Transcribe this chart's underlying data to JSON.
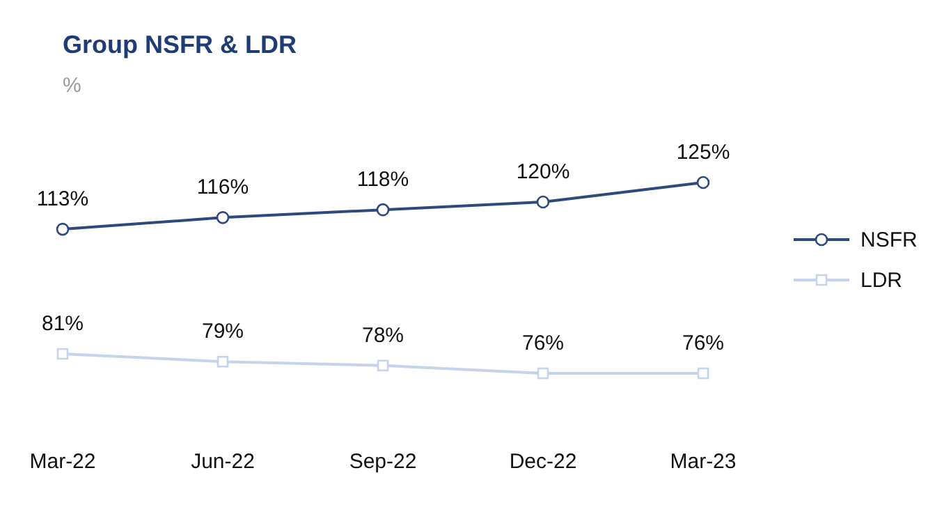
{
  "chart_data": {
    "type": "line",
    "title": "Group NSFR & LDR",
    "subtitle": "%",
    "categories": [
      "Mar-22",
      "Jun-22",
      "Sep-22",
      "Dec-22",
      "Mar-23"
    ],
    "series": [
      {
        "name": "NSFR",
        "color": "#2e4a7d",
        "marker": "circle",
        "values": [
          113,
          116,
          118,
          120,
          125
        ],
        "value_labels": [
          "113%",
          "116%",
          "118%",
          "120%",
          "125%"
        ]
      },
      {
        "name": "LDR",
        "color": "#c5d3ec",
        "marker": "square",
        "values": [
          81,
          79,
          78,
          76,
          76
        ],
        "value_labels": [
          "81%",
          "79%",
          "78%",
          "76%",
          "76%"
        ]
      }
    ],
    "legend": "right",
    "grid": false
  }
}
